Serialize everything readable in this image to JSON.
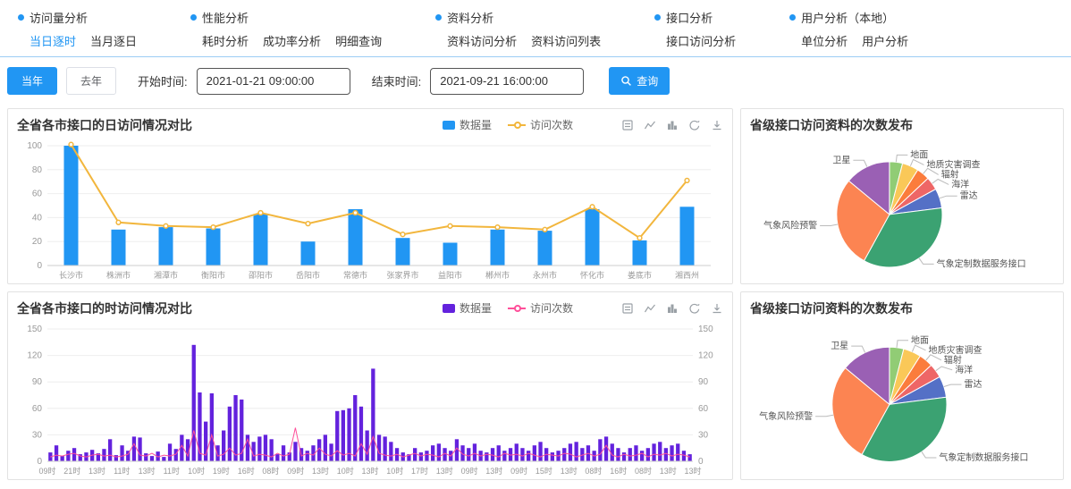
{
  "theme": {
    "accent": "#2196f3"
  },
  "nav": {
    "groups": [
      {
        "title": "访问量分析",
        "items": [
          "当日逐时",
          "当月逐日"
        ],
        "active_item": "当日逐时"
      },
      {
        "title": "性能分析",
        "items": [
          "耗时分析",
          "成功率分析",
          "明细查询"
        ]
      },
      {
        "title": "资料分析",
        "items": [
          "资料访问分析",
          "资料访问列表"
        ]
      },
      {
        "title": "接口分析",
        "items": [
          "接口访问分析"
        ]
      },
      {
        "title": "用户分析（本地）",
        "items": [
          "单位分析",
          "用户分析"
        ]
      }
    ]
  },
  "filters": {
    "this_year": "当年",
    "last_year": "去年",
    "start_label": "开始时间:",
    "start_value": "2021-01-21 09:00:00",
    "end_label": "结束时间:",
    "end_value": "2021-09-21 16:00:00",
    "search": "查询"
  },
  "toolbox_icons": [
    "data-view",
    "line-chart",
    "bar-chart",
    "restore",
    "download"
  ],
  "chart_data": [
    {
      "type": "bar+line",
      "title": "全省各市接口的日访问情况对比",
      "categories": [
        "长沙市",
        "株洲市",
        "湘潭市",
        "衡阳市",
        "邵阳市",
        "岳阳市",
        "常德市",
        "张家界市",
        "益阳市",
        "郴州市",
        "永州市",
        "怀化市",
        "娄底市",
        "湘西州"
      ],
      "series": [
        {
          "name": "数据量",
          "type": "bar",
          "color": "#2196f3",
          "values": [
            100,
            30,
            32,
            31,
            43,
            20,
            47,
            23,
            19,
            30,
            29,
            47,
            21,
            49
          ]
        },
        {
          "name": "访问次数",
          "type": "line",
          "color": "#f2b63d",
          "values": [
            101,
            36,
            33,
            32,
            44,
            35,
            44,
            26,
            33,
            32,
            30,
            49,
            23,
            71
          ]
        }
      ],
      "ylim": [
        0,
        100
      ],
      "yticks": [
        0,
        20,
        40,
        60,
        80,
        100
      ],
      "marker": true,
      "dual_axis": false,
      "grid": true,
      "legend_position": "top-right"
    },
    {
      "type": "bar+line",
      "title": "全省各市接口的时访问情况对比",
      "x_labels": [
        "09时",
        "21时",
        "13时",
        "11时",
        "13时",
        "11时",
        "10时",
        "19时",
        "16时",
        "08时",
        "09时",
        "13时",
        "10时",
        "13时",
        "10时",
        "17时",
        "13时",
        "09时",
        "13时",
        "09时",
        "15时",
        "13时",
        "08时",
        "16时",
        "08时",
        "13时",
        "13时"
      ],
      "series": [
        {
          "name": "数据量",
          "type": "bar",
          "color": "#6322dd",
          "values": [
            10,
            18,
            6,
            12,
            15,
            8,
            10,
            13,
            9,
            14,
            25,
            7,
            18,
            12,
            28,
            27,
            9,
            6,
            11,
            5,
            20,
            14,
            30,
            25,
            132,
            78,
            45,
            77,
            18,
            35,
            62,
            75,
            70,
            30,
            22,
            28,
            30,
            25,
            8,
            18,
            10,
            22,
            15,
            12,
            18,
            25,
            30,
            20,
            57,
            58,
            60,
            75,
            62,
            35,
            105,
            30,
            28,
            22,
            15,
            10,
            8,
            15,
            10,
            12,
            18,
            20,
            15,
            12,
            25,
            18,
            15,
            20,
            12,
            10,
            15,
            18,
            12,
            15,
            20,
            15,
            12,
            18,
            22,
            15,
            10,
            12,
            15,
            20,
            22,
            15,
            18,
            12,
            25,
            28,
            20,
            15,
            10,
            15,
            18,
            12,
            15,
            20,
            22,
            15,
            18,
            20,
            12,
            8
          ]
        },
        {
          "name": "访问次数",
          "type": "line",
          "color": "#ff4f9a",
          "values": [
            5,
            7,
            6,
            8,
            9,
            6,
            5,
            7,
            8,
            6,
            7,
            5,
            6,
            8,
            20,
            7,
            6,
            9,
            5,
            7,
            6,
            8,
            18,
            6,
            35,
            9,
            7,
            30,
            6,
            8,
            15,
            7,
            9,
            25,
            6,
            8,
            7,
            5,
            9,
            6,
            8,
            38,
            6,
            9,
            7,
            15,
            8,
            6,
            12,
            7,
            9,
            6,
            20,
            8,
            28,
            9,
            7,
            6,
            8,
            5,
            7,
            9,
            6,
            8,
            7,
            5,
            9,
            6,
            15,
            8,
            6,
            9,
            6,
            8,
            7,
            5,
            9,
            7,
            8,
            6,
            9,
            7,
            5,
            8,
            7,
            6,
            9,
            8,
            5,
            7,
            9,
            6,
            8,
            18,
            7,
            5,
            8,
            6,
            7,
            9,
            5,
            8,
            7,
            9,
            6,
            8,
            7,
            5
          ]
        }
      ],
      "ylim": [
        0,
        150
      ],
      "yticks": [
        0,
        30,
        60,
        90,
        120,
        150
      ],
      "marker": false,
      "dual_axis": true,
      "grid": true,
      "legend_position": "top-right"
    },
    {
      "type": "pie",
      "title": "省级接口访问资料的次数发布",
      "slices": [
        {
          "label": "地面",
          "value": 4,
          "color": "#91cc75"
        },
        {
          "label": "地质灾害调查",
          "value": 5,
          "color": "#fac858"
        },
        {
          "label": "辐射",
          "value": 4,
          "color": "#fb7c3c"
        },
        {
          "label": "海洋",
          "value": 4,
          "color": "#ee6666"
        },
        {
          "label": "雷达",
          "value": 6,
          "color": "#5470c6"
        },
        {
          "label": "气象定制数据服务接口",
          "value": 35,
          "color": "#3ba272"
        },
        {
          "label": "气象风险预警",
          "value": 28,
          "color": "#fc8452"
        },
        {
          "label": "卫星",
          "value": 14,
          "color": "#9a60b4"
        }
      ],
      "start_angle": "top",
      "clockwise": true
    },
    {
      "type": "pie",
      "title": "省级接口访问资料的次数发布",
      "slices": [
        {
          "label": "地面",
          "value": 4,
          "color": "#91cc75"
        },
        {
          "label": "地质灾害调查",
          "value": 5,
          "color": "#fac858"
        },
        {
          "label": "辐射",
          "value": 4,
          "color": "#fb7c3c"
        },
        {
          "label": "海洋",
          "value": 4,
          "color": "#ee6666"
        },
        {
          "label": "雷达",
          "value": 6,
          "color": "#5470c6"
        },
        {
          "label": "气象定制数据服务接口",
          "value": 35,
          "color": "#3ba272"
        },
        {
          "label": "气象风险预警",
          "value": 28,
          "color": "#fc8452"
        },
        {
          "label": "卫星",
          "value": 14,
          "color": "#9a60b4"
        }
      ],
      "start_angle": "top",
      "clockwise": true
    }
  ]
}
